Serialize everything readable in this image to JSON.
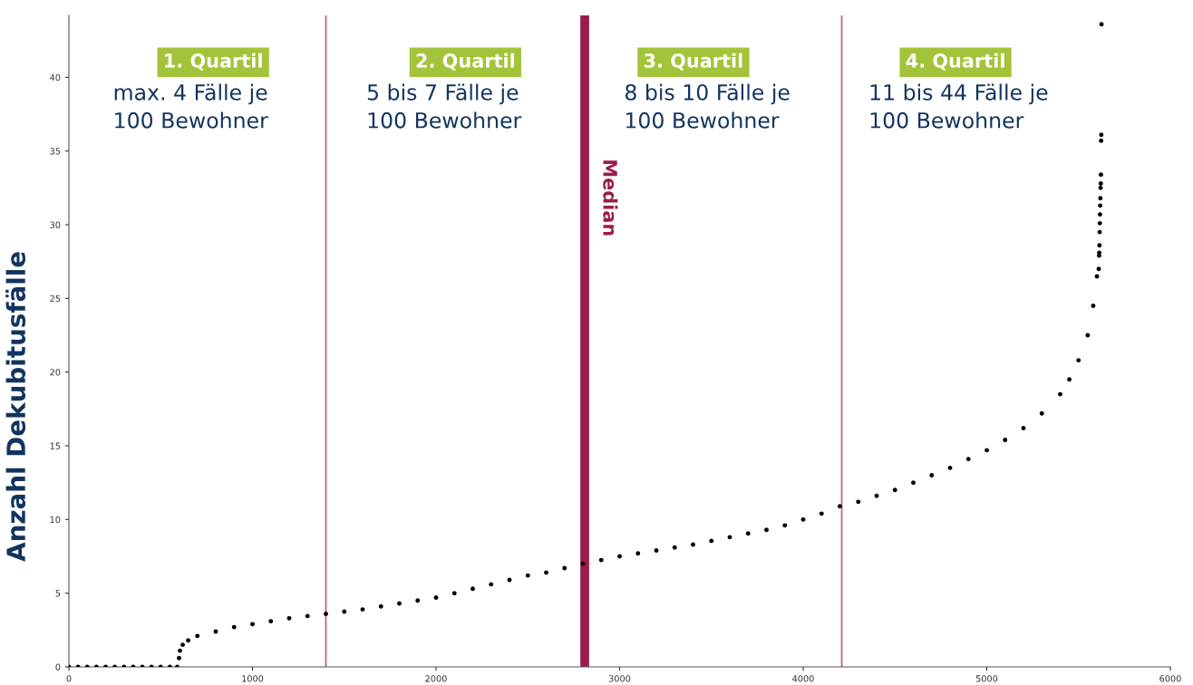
{
  "chart_data": {
    "type": "scatter",
    "ylabel": "Anzahl Dekubitusfälle",
    "xlim": [
      0,
      6000
    ],
    "xticks": [
      0,
      1000,
      2000,
      3000,
      4000,
      5000,
      6000
    ],
    "ylim": [
      0,
      44.2
    ],
    "yticks": [
      0,
      5,
      10,
      15,
      20,
      25,
      30,
      35,
      40
    ],
    "grid": false,
    "marker": "circle",
    "series": [
      {
        "color": "#000000",
        "x": [
          0,
          50,
          100,
          150,
          200,
          250,
          300,
          350,
          400,
          450,
          500,
          550,
          590,
          600,
          605,
          620,
          650,
          700,
          800,
          900,
          1000,
          1100,
          1200,
          1300,
          1400,
          1500,
          1600,
          1700,
          1800,
          1900,
          2000,
          2100,
          2200,
          2300,
          2400,
          2500,
          2600,
          2700,
          2800,
          2900,
          3000,
          3100,
          3200,
          3300,
          3400,
          3500,
          3600,
          3700,
          3800,
          3900,
          4000,
          4100,
          4200,
          4300,
          4400,
          4500,
          4600,
          4700,
          4800,
          4900,
          5000,
          5100,
          5200,
          5300,
          5400,
          5450,
          5500,
          5550,
          5580,
          5600,
          5610,
          5612,
          5613,
          5614,
          5615,
          5616,
          5617,
          5618,
          5619,
          5620,
          5621,
          5622,
          5623,
          5624,
          5625
        ],
        "values": [
          0,
          0,
          0,
          0,
          0,
          0,
          0,
          0,
          0,
          0,
          0,
          0,
          0,
          0.6,
          1.1,
          1.5,
          1.8,
          2.1,
          2.4,
          2.7,
          2.9,
          3.1,
          3.3,
          3.45,
          3.6,
          3.75,
          3.9,
          4.1,
          4.3,
          4.5,
          4.7,
          5.0,
          5.3,
          5.6,
          5.9,
          6.2,
          6.4,
          6.7,
          7.0,
          7.25,
          7.5,
          7.7,
          7.9,
          8.1,
          8.3,
          8.55,
          8.8,
          9.05,
          9.3,
          9.6,
          10.0,
          10.4,
          10.9,
          11.2,
          11.6,
          12.0,
          12.5,
          13.0,
          13.5,
          14.1,
          14.7,
          15.4,
          16.2,
          17.2,
          18.5,
          19.5,
          20.8,
          22.5,
          24.5,
          26.5,
          27.0,
          27.9,
          28.1,
          28.6,
          29.5,
          30.1,
          30.7,
          31.3,
          31.8,
          32.5,
          32.8,
          33.4,
          35.7,
          36.1,
          43.6
        ]
      }
    ],
    "ref_lines": [
      {
        "axis": "x",
        "value": 1400,
        "color": "#c8686e"
      },
      {
        "axis": "x",
        "value": 2810,
        "label": "Median",
        "color": "#9b1c4b"
      },
      {
        "axis": "x",
        "value": 4210,
        "color": "#c8686e"
      }
    ],
    "annotations": [
      "1. Quartil",
      "max. 4 Fälle je\n100 Bewohner",
      "2. Quartil",
      "5 bis 7 Fälle je\n100 Bewohner",
      "3. Quartil",
      "8 bis 10 Fälle je\n100 Bewohner",
      "4. Quartil",
      "11 bis 44 Fälle je\n100 Bewohner"
    ]
  }
}
